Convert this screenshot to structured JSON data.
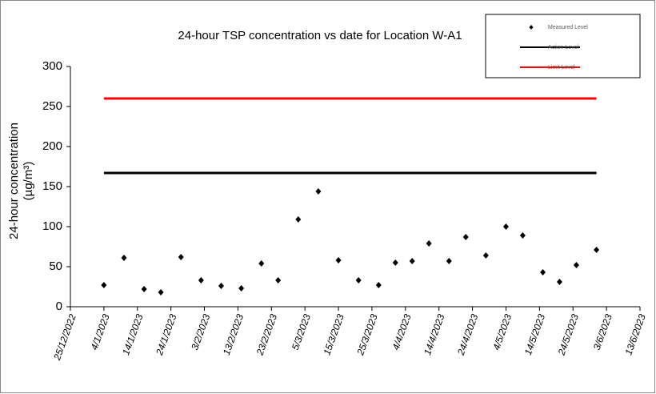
{
  "chart_data": {
    "type": "scatter",
    "title": "24-hour TSP concentration vs date for Location W-A1",
    "ylabel": [
      "24-hour concentration",
      "(µg/m³)"
    ],
    "xlim": [
      "25/12/2022",
      "13/6/2023"
    ],
    "xticks": [
      "25/12/2022",
      "4/1/2023",
      "14/1/2023",
      "24/1/2023",
      "3/2/2023",
      "13/2/2023",
      "23/2/2023",
      "5/3/2023",
      "15/3/2023",
      "25/3/2023",
      "4/4/2023",
      "14/4/2023",
      "24/4/2023",
      "4/5/2023",
      "14/5/2023",
      "24/5/2023",
      "3/6/2023",
      "13/6/2023"
    ],
    "ylim": [
      0,
      300
    ],
    "yticks": [
      0,
      50,
      100,
      150,
      200,
      250,
      300
    ],
    "series": [
      {
        "name": "Measured Level",
        "color": "#000000",
        "marker": "diamond",
        "x": [
          "4/1/2023",
          "10/1/2023",
          "16/1/2023",
          "21/1/2023",
          "27/1/2023",
          "2/2/2023",
          "8/2/2023",
          "14/2/2023",
          "20/2/2023",
          "25/2/2023",
          "3/3/2023",
          "9/3/2023",
          "15/3/2023",
          "21/3/2023",
          "27/3/2023",
          "1/4/2023",
          "6/4/2023",
          "11/4/2023",
          "17/4/2023",
          "22/4/2023",
          "28/4/2023",
          "4/5/2023",
          "9/5/2023",
          "15/5/2023",
          "20/5/2023",
          "25/5/2023",
          "31/5/2023"
        ],
        "values": [
          27,
          61,
          22,
          18,
          62,
          33,
          26,
          23,
          54,
          33,
          109,
          144,
          58,
          33,
          27,
          55,
          57,
          79,
          57,
          87,
          64,
          100,
          89,
          43,
          31,
          52,
          71
        ]
      },
      {
        "name": "Action Level",
        "color": "#000000",
        "marker": "line",
        "x": [
          "4/1/2023",
          "31/5/2023"
        ],
        "values": [
          167,
          167
        ]
      },
      {
        "name": "Limit Level",
        "color": "#ff0000",
        "marker": "line",
        "x": [
          "4/1/2023",
          "31/5/2023"
        ],
        "values": [
          260,
          260
        ]
      }
    ]
  }
}
